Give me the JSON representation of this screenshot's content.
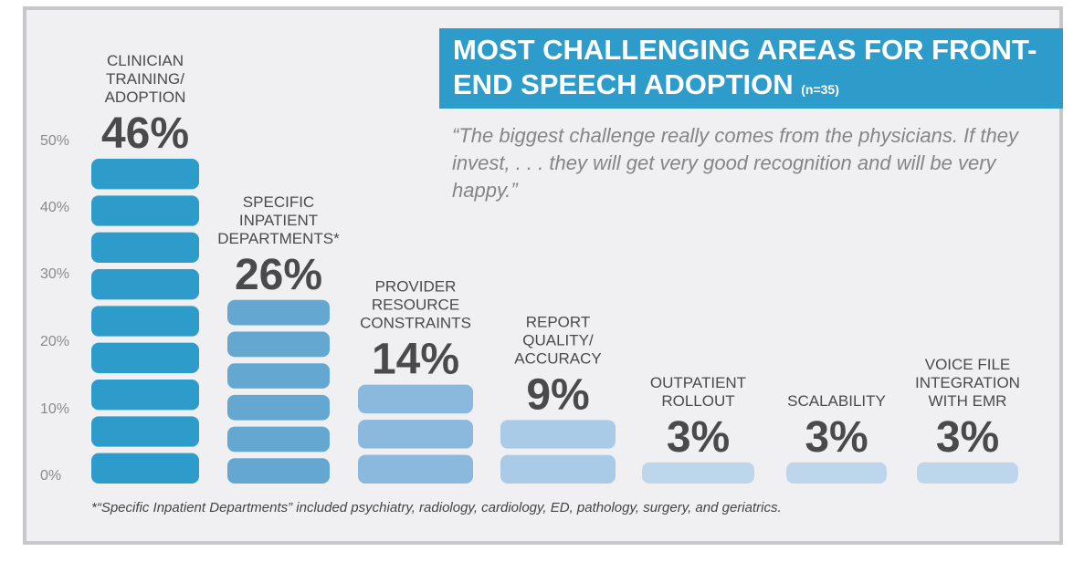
{
  "title": {
    "main": "MOST CHALLENGING AREAS FOR FRONT-END SPEECH ADOPTION",
    "n": "(n=35)"
  },
  "quote": "“The biggest challenge really comes from the physicians. If they invest, . . . they will get very good recognition and will be very happy.”",
  "footnote": "*“Specific Inpatient Departments” included psychiatry, radiology, cardiology, ED, pathology, surgery, and geriatrics.",
  "chart_data": {
    "type": "bar",
    "title": "MOST CHALLENGING AREAS FOR FRONT-END SPEECH ADOPTION (n=35)",
    "ylim": [
      0,
      50
    ],
    "yticks": [
      "0%",
      "10%",
      "20%",
      "30%",
      "40%",
      "50%"
    ],
    "ytick_values": [
      0,
      10,
      20,
      30,
      40,
      50
    ],
    "categories": [
      [
        "CLINICIAN",
        "TRAINING/",
        "ADOPTION"
      ],
      [
        "SPECIFIC",
        "INPATIENT",
        "DEPARTMENTS*"
      ],
      [
        "PROVIDER",
        "RESOURCE",
        "CONSTRAINTS"
      ],
      [
        "REPORT",
        "QUALITY/",
        "ACCURACY"
      ],
      [
        "OUTPATIENT",
        "ROLLOUT"
      ],
      [
        "SCALABILITY"
      ],
      [
        "VOICE FILE",
        "INTEGRATION",
        "WITH EMR"
      ]
    ],
    "values": [
      46,
      26,
      14,
      9,
      3,
      3,
      3
    ],
    "value_labels": [
      "46%",
      "26%",
      "14%",
      "9%",
      "3%",
      "3%",
      "3%"
    ],
    "segments": [
      9,
      6,
      3,
      2,
      1,
      1,
      1
    ],
    "colors": [
      "#2e9ccb",
      "#64a8d2",
      "#8ab9dd",
      "#a9cbe7",
      "#bdd6ec",
      "#bdd6ec",
      "#bdd6ec"
    ]
  }
}
